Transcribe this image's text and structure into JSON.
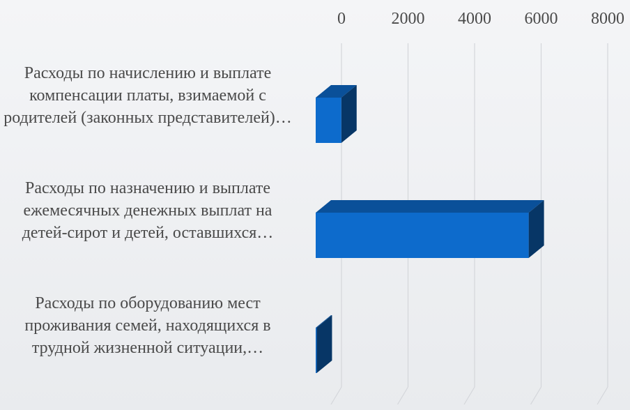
{
  "chart_data": {
    "type": "bar3d_horizontal",
    "categories": [
      "Расходы по начислению и выплате компенсации платы, взимаемой с родителей (законных представителей)…",
      "Расходы по назначению и выплате ежемесячных денежных выплат на детей-сирот и детей, оставшихся…",
      "Расходы по оборудованию мест проживания семей, находящихся в трудной жизненной ситуации,…"
    ],
    "values": [
      770,
      6400,
      30
    ],
    "color": "#0d6bcc",
    "xlim": [
      0,
      8000
    ],
    "xticks": [
      0,
      2000,
      4000,
      6000,
      8000
    ],
    "grid": true
  }
}
